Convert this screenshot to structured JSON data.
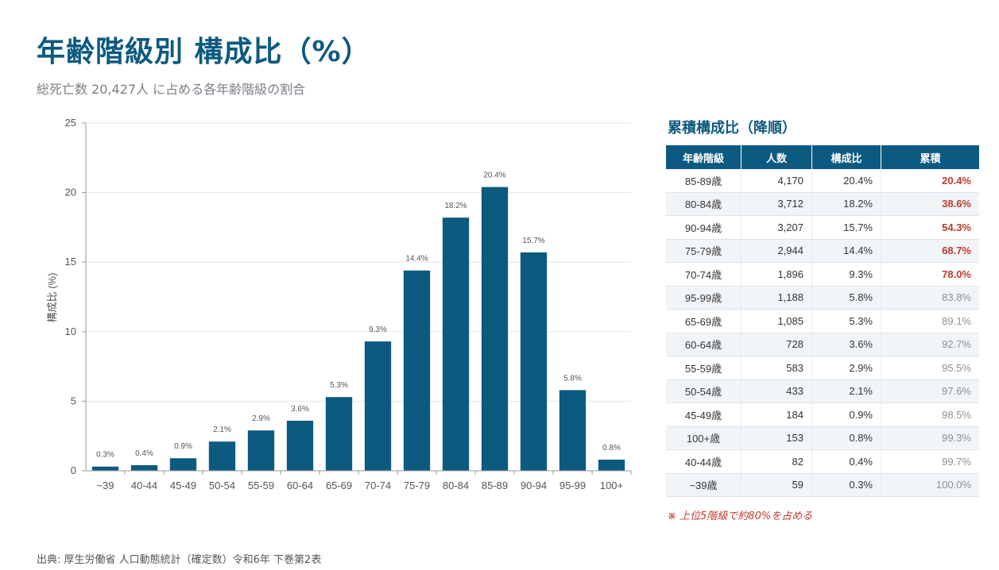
{
  "title": "年齢階級別 構成比（%）",
  "subtitle": "総死亡数 20,427人 に占める各年齢階級の割合",
  "chart_data": {
    "type": "bar",
    "categories": [
      "~39",
      "40-44",
      "45-49",
      "50-54",
      "55-59",
      "60-64",
      "65-69",
      "70-74",
      "75-79",
      "80-84",
      "85-89",
      "90-94",
      "95-99",
      "100+"
    ],
    "values": [
      0.3,
      0.4,
      0.9,
      2.1,
      2.9,
      3.6,
      5.3,
      9.3,
      14.4,
      18.2,
      20.4,
      15.7,
      5.8,
      0.8
    ],
    "data_labels": [
      "0.3%",
      "0.4%",
      "0.9%",
      "2.1%",
      "2.9%",
      "3.6%",
      "5.3%",
      "9.3%",
      "14.4%",
      "18.2%",
      "20.4%",
      "15.7%",
      "5.8%",
      "0.8%"
    ],
    "ylabel": "構成比 (%)",
    "xlabel": "",
    "ylim": [
      0,
      25
    ],
    "yticks": [
      0,
      5,
      10,
      15,
      20,
      25
    ],
    "grid": true,
    "bar_color": "#0d5a80"
  },
  "side_table": {
    "title": "累積構成比（降順）",
    "headers": [
      "年齢階級",
      "人数",
      "構成比",
      "累積"
    ],
    "rows": [
      {
        "age": "85-89歳",
        "count": "4,170",
        "pct": "20.4%",
        "cum": "20.4%",
        "highlight": true
      },
      {
        "age": "80-84歳",
        "count": "3,712",
        "pct": "18.2%",
        "cum": "38.6%",
        "highlight": true
      },
      {
        "age": "90-94歳",
        "count": "3,207",
        "pct": "15.7%",
        "cum": "54.3%",
        "highlight": true
      },
      {
        "age": "75-79歳",
        "count": "2,944",
        "pct": "14.4%",
        "cum": "68.7%",
        "highlight": true
      },
      {
        "age": "70-74歳",
        "count": "1,896",
        "pct": "9.3%",
        "cum": "78.0%",
        "highlight": true
      },
      {
        "age": "95-99歳",
        "count": "1,188",
        "pct": "5.8%",
        "cum": "83.8%",
        "highlight": false
      },
      {
        "age": "65-69歳",
        "count": "1,085",
        "pct": "5.3%",
        "cum": "89.1%",
        "highlight": false
      },
      {
        "age": "60-64歳",
        "count": "728",
        "pct": "3.6%",
        "cum": "92.7%",
        "highlight": false
      },
      {
        "age": "55-59歳",
        "count": "583",
        "pct": "2.9%",
        "cum": "95.5%",
        "highlight": false
      },
      {
        "age": "50-54歳",
        "count": "433",
        "pct": "2.1%",
        "cum": "97.6%",
        "highlight": false
      },
      {
        "age": "45-49歳",
        "count": "184",
        "pct": "0.9%",
        "cum": "98.5%",
        "highlight": false
      },
      {
        "age": "100+歳",
        "count": "153",
        "pct": "0.8%",
        "cum": "99.3%",
        "highlight": false
      },
      {
        "age": "40-44歳",
        "count": "82",
        "pct": "0.4%",
        "cum": "99.7%",
        "highlight": false
      },
      {
        "age": "~39歳",
        "count": "59",
        "pct": "0.3%",
        "cum": "100.0%",
        "highlight": false
      }
    ]
  },
  "note": "※ 上位5階級で約80%を占める",
  "source": "出典: 厚生労働省 人口動態統計（確定数）令和6年 下巻第2表",
  "colors": {
    "accent": "#0d5a80",
    "highlight": "#c0392b"
  }
}
